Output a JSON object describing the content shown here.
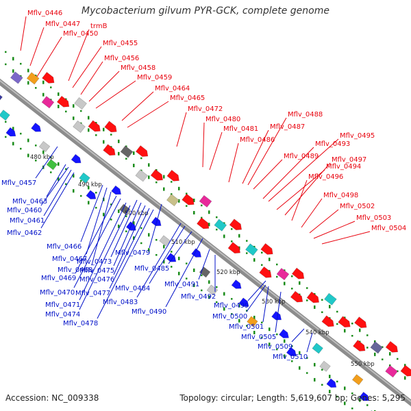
{
  "title": "Mycobacterium gilvum PYR-GCK, complete genome",
  "footer": {
    "accession": "Accession: NC_009338",
    "info": "Topology: circular; Length: 5,619,607 bp; Genes: 5,295"
  },
  "colors": {
    "top_labels": "#e8000c",
    "bottom_labels": "#0010c8",
    "backbone": "#8c8c8c",
    "tick": "#1a8c1a",
    "forward_gene": "#ff1010",
    "reverse_gene": "#1414ff"
  },
  "kbp_labels": [
    "480 kbp",
    "490 kbp",
    "500 kbp",
    "510 kbp",
    "520 kbp",
    "530 kbp",
    "540 kbp",
    "550 kbp"
  ],
  "top_labels": [
    "Mflv_0446",
    "Mflv_0447",
    "Mflv_0450",
    "trmB",
    "Mflv_0455",
    "Mflv_0456",
    "Mflv_0458",
    "Mflv_0459",
    "Mflv_0464",
    "Mflv_0465",
    "Mflv_0472",
    "Mflv_0480",
    "Mflv_0481",
    "Mflv_0486",
    "Mflv_0487",
    "Mflv_0488",
    "Mflv_0489",
    "Mflv_0493",
    "Mflv_0495",
    "Mflv_0494",
    "Mflv_0497",
    "Mflv_0496",
    "Mflv_0498",
    "Mflv_0502",
    "Mflv_0503",
    "Mflv_0504"
  ],
  "bottom_labels": [
    "Mflv_0457",
    "Mflv_0463",
    "Mflv_0460",
    "Mflv_0461",
    "Mflv_0462",
    "Mflv_0466",
    "Mflv_0467",
    "Mflv_0468",
    "Mflv_0469",
    "Mflv_0470",
    "Mflv_0471",
    "Mflv_0474",
    "Mflv_0473",
    "Mflv_0475",
    "Mflv_0476",
    "Mflv_0477",
    "Mflv_0478",
    "Mflv_0479",
    "Mflv_0483",
    "Mflv_0484",
    "Mflv_0485",
    "Mflv_0490",
    "Mflv_0491",
    "Mflv_0492",
    "Mflv_0499",
    "Mflv_0500",
    "Mflv_0501",
    "Mflv_0505",
    "Mflv_0509",
    "Mflv_0510"
  ],
  "genes_top": [
    [
      "#7b68c8",
      "box"
    ],
    [
      "#f29e1c",
      "box"
    ],
    [
      "#ff1010",
      "arrow"
    ],
    [
      "#e8299a",
      "box"
    ],
    [
      "#ff1010",
      "arrow"
    ],
    [
      "#c8c8c8",
      "box"
    ],
    [
      "#c8c8c8",
      "box"
    ],
    [
      "#ff1010",
      "arrow"
    ],
    [
      "#ff1010",
      "arrow"
    ],
    [
      "#ff1010",
      "arrow"
    ],
    [
      "#666666",
      "box"
    ],
    [
      "#ff1010",
      "arrow"
    ],
    [
      "#c8c8c8",
      "box"
    ],
    [
      "#ff1010",
      "arrow"
    ],
    [
      "#ff1010",
      "arrow"
    ],
    [
      "#c8c08a",
      "box"
    ],
    [
      "#ff1010",
      "arrow"
    ],
    [
      "#e8299a",
      "box"
    ],
    [
      "#ff1010",
      "arrow"
    ],
    [
      "#20c8c8",
      "box"
    ],
    [
      "#ff1010",
      "arrow"
    ],
    [
      "#ff1010",
      "arrow"
    ],
    [
      "#20c8c8",
      "box"
    ],
    [
      "#ff1010",
      "arrow"
    ],
    [
      "#ff1010",
      "arrow"
    ],
    [
      "#e8299a",
      "box"
    ],
    [
      "#ff1010",
      "arrow"
    ],
    [
      "#ff1010",
      "arrow"
    ],
    [
      "#ff1010",
      "arrow"
    ],
    [
      "#20c8c8",
      "box"
    ],
    [
      "#ff1010",
      "arrow"
    ],
    [
      "#ff1010",
      "arrow"
    ],
    [
      "#ff1010",
      "arrow"
    ],
    [
      "#ff1010",
      "arrow"
    ],
    [
      "#666699",
      "box"
    ],
    [
      "#ff1010",
      "arrow"
    ],
    [
      "#e8299a",
      "box"
    ],
    [
      "#ff1010",
      "arrow"
    ],
    [
      "#ff1010",
      "arrow"
    ]
  ],
  "genes_bottom": [
    [
      "#3a3aa0",
      "box"
    ],
    [
      "#20c8c8",
      "box"
    ],
    [
      "#1414ff",
      "arrow"
    ],
    [
      "#1414ff",
      "arrow"
    ],
    [
      "#c8c8c8",
      "box"
    ],
    [
      "#40c040",
      "box"
    ],
    [
      "#1414ff",
      "arrow"
    ],
    [
      "#20c8c8",
      "box"
    ],
    [
      "#1414ff",
      "arrow"
    ],
    [
      "#1414ff",
      "arrow"
    ],
    [
      "#666666",
      "box"
    ],
    [
      "#1414ff",
      "arrow"
    ],
    [
      "#1414ff",
      "arrow"
    ],
    [
      "#c8c8c8",
      "box"
    ],
    [
      "#1414ff",
      "arrow"
    ],
    [
      "#1414ff",
      "arrow"
    ],
    [
      "#666666",
      "box"
    ],
    [
      "#c8c8c8",
      "box"
    ],
    [
      "#1414ff",
      "arrow"
    ],
    [
      "#1414ff",
      "arrow"
    ],
    [
      "#f29e1c",
      "box"
    ],
    [
      "#1414ff",
      "arrow"
    ],
    [
      "#1414ff",
      "arrow"
    ],
    [
      "#1414ff",
      "arrow"
    ],
    [
      "#20c8c8",
      "box"
    ],
    [
      "#c8c8c8",
      "box"
    ],
    [
      "#1414ff",
      "arrow"
    ],
    [
      "#f29e1c",
      "box"
    ],
    [
      "#1414ff",
      "arrow"
    ],
    [
      "#20c8c8",
      "box"
    ]
  ]
}
